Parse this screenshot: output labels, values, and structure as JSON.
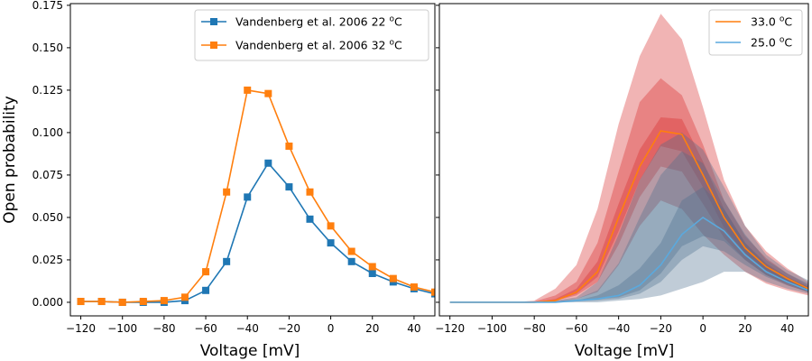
{
  "chart_data": [
    {
      "type": "line",
      "xlabel": "Voltage [mV]",
      "ylabel": "Open probability",
      "xlim": [
        -125,
        50
      ],
      "ylim": [
        -0.008,
        0.176
      ],
      "xticks": [
        "−120",
        "−100",
        "−80",
        "−60",
        "−40",
        "−20",
        "0",
        "20",
        "40"
      ],
      "xtick_values": [
        -120,
        -100,
        -80,
        -60,
        -40,
        -20,
        0,
        20,
        40
      ],
      "yticks": [
        "0.000",
        "0.025",
        "0.050",
        "0.075",
        "0.100",
        "0.125",
        "0.150",
        "0.175"
      ],
      "ytick_values": [
        0.0,
        0.025,
        0.05,
        0.075,
        0.1,
        0.125,
        0.15,
        0.175
      ],
      "grid": false,
      "legend_position": "top-right",
      "x": [
        -120,
        -110,
        -100,
        -90,
        -80,
        -70,
        -60,
        -50,
        -40,
        -30,
        -20,
        -10,
        0,
        10,
        20,
        30,
        40,
        50
      ],
      "series": [
        {
          "name": "Vandenberg et al. 2006 22 °C",
          "legend_base": "Vandenberg et al. 2006 22 ",
          "legend_sup": "o",
          "legend_unit": "C",
          "color": "#1f77b4",
          "marker": "square",
          "values": [
            0.0005,
            0.0005,
            0.0,
            0.0,
            0.0,
            0.001,
            0.007,
            0.024,
            0.062,
            0.082,
            0.068,
            0.049,
            0.035,
            0.024,
            0.017,
            0.012,
            0.008,
            0.005
          ]
        },
        {
          "name": "Vandenberg et al. 2006 32 °C",
          "legend_base": "Vandenberg et al. 2006 32 ",
          "legend_sup": "o",
          "legend_unit": "C",
          "color": "#ff7f0e",
          "marker": "square",
          "values": [
            0.0005,
            0.0005,
            0.0,
            0.0005,
            0.001,
            0.003,
            0.018,
            0.065,
            0.125,
            0.123,
            0.092,
            0.065,
            0.045,
            0.03,
            0.021,
            0.014,
            0.009,
            0.006
          ]
        }
      ]
    },
    {
      "type": "area",
      "xlabel": "Voltage [mV]",
      "xlim": [
        -125,
        50
      ],
      "ylim": [
        -0.008,
        0.176
      ],
      "xticks": [
        "−120",
        "−100",
        "−80",
        "−60",
        "−40",
        "−20",
        "0",
        "20",
        "40"
      ],
      "xtick_values": [
        -120,
        -100,
        -80,
        -60,
        -40,
        -20,
        0,
        20,
        40
      ],
      "shared_y": true,
      "grid": false,
      "legend_position": "top-right",
      "x": [
        -120,
        -110,
        -100,
        -90,
        -80,
        -70,
        -60,
        -50,
        -40,
        -30,
        -20,
        -10,
        0,
        10,
        20,
        30,
        40,
        50
      ],
      "series": [
        {
          "name": "33.0 °C",
          "legend_base": "33.0 ",
          "legend_sup": "o",
          "legend_unit": "C",
          "color": "#ff7f0e",
          "band_color": "#d62728",
          "values": [
            0,
            0,
            0,
            0,
            0,
            0.001,
            0.006,
            0.018,
            0.05,
            0.08,
            0.101,
            0.099,
            0.075,
            0.05,
            0.032,
            0.021,
            0.014,
            0.008
          ],
          "band_outer_lower": [
            0,
            0,
            0,
            0,
            0,
            0,
            0.002,
            0.006,
            0.022,
            0.045,
            0.06,
            0.055,
            0.04,
            0.028,
            0.018,
            0.011,
            0.007,
            0.004
          ],
          "band_outer_upper": [
            0,
            0,
            0,
            0,
            0.001,
            0.008,
            0.022,
            0.055,
            0.105,
            0.145,
            0.17,
            0.155,
            0.115,
            0.072,
            0.045,
            0.03,
            0.02,
            0.012
          ],
          "band_mid_lower": [
            0,
            0,
            0,
            0,
            0,
            0.001,
            0.004,
            0.012,
            0.034,
            0.062,
            0.08,
            0.077,
            0.058,
            0.038,
            0.025,
            0.016,
            0.01,
            0.006
          ],
          "band_mid_upper": [
            0,
            0,
            0,
            0,
            0.0005,
            0.004,
            0.012,
            0.035,
            0.077,
            0.118,
            0.132,
            0.122,
            0.093,
            0.06,
            0.039,
            0.026,
            0.017,
            0.01
          ],
          "band_inner_lower": [
            0,
            0,
            0,
            0,
            0,
            0.001,
            0.005,
            0.015,
            0.042,
            0.072,
            0.092,
            0.089,
            0.068,
            0.044,
            0.029,
            0.019,
            0.012,
            0.007
          ],
          "band_inner_upper": [
            0,
            0,
            0,
            0,
            0,
            0.002,
            0.008,
            0.024,
            0.058,
            0.09,
            0.109,
            0.108,
            0.083,
            0.055,
            0.035,
            0.023,
            0.015,
            0.009
          ]
        },
        {
          "name": "25.0 °C",
          "legend_base": "25.0 ",
          "legend_sup": "o",
          "legend_unit": "C",
          "color": "#5ba9dd",
          "band_color": "#4a6d8c",
          "values": [
            0,
            0,
            0,
            0,
            0,
            0,
            0.001,
            0.002,
            0.004,
            0.01,
            0.022,
            0.04,
            0.05,
            0.042,
            0.028,
            0.018,
            0.012,
            0.007
          ],
          "band_outer_lower": [
            0,
            0,
            0,
            0,
            0,
            0,
            0,
            0,
            0.001,
            0.002,
            0.004,
            0.008,
            0.012,
            0.018,
            0.018,
            0.012,
            0.008,
            0.005
          ],
          "band_outer_upper": [
            0,
            0,
            0,
            0,
            0,
            0.001,
            0.003,
            0.012,
            0.04,
            0.072,
            0.093,
            0.1,
            0.09,
            0.068,
            0.045,
            0.028,
            0.019,
            0.013
          ],
          "band_mid_lower": [
            0,
            0,
            0,
            0,
            0,
            0,
            0.0005,
            0.001,
            0.002,
            0.005,
            0.012,
            0.025,
            0.033,
            0.03,
            0.022,
            0.015,
            0.01,
            0.006
          ],
          "band_mid_upper": [
            0,
            0,
            0,
            0,
            0,
            0.0005,
            0.002,
            0.007,
            0.023,
            0.05,
            0.075,
            0.089,
            0.082,
            0.06,
            0.04,
            0.025,
            0.017,
            0.011
          ],
          "band_inner_lower": [
            0,
            0,
            0,
            0,
            0,
            0,
            0.001,
            0.002,
            0.003,
            0.007,
            0.017,
            0.033,
            0.039,
            0.036,
            0.025,
            0.016,
            0.011,
            0.006
          ],
          "band_inner_upper": [
            0,
            0,
            0,
            0,
            0,
            0,
            0.001,
            0.004,
            0.01,
            0.02,
            0.035,
            0.06,
            0.068,
            0.055,
            0.035,
            0.022,
            0.014,
            0.009
          ]
        }
      ]
    }
  ]
}
